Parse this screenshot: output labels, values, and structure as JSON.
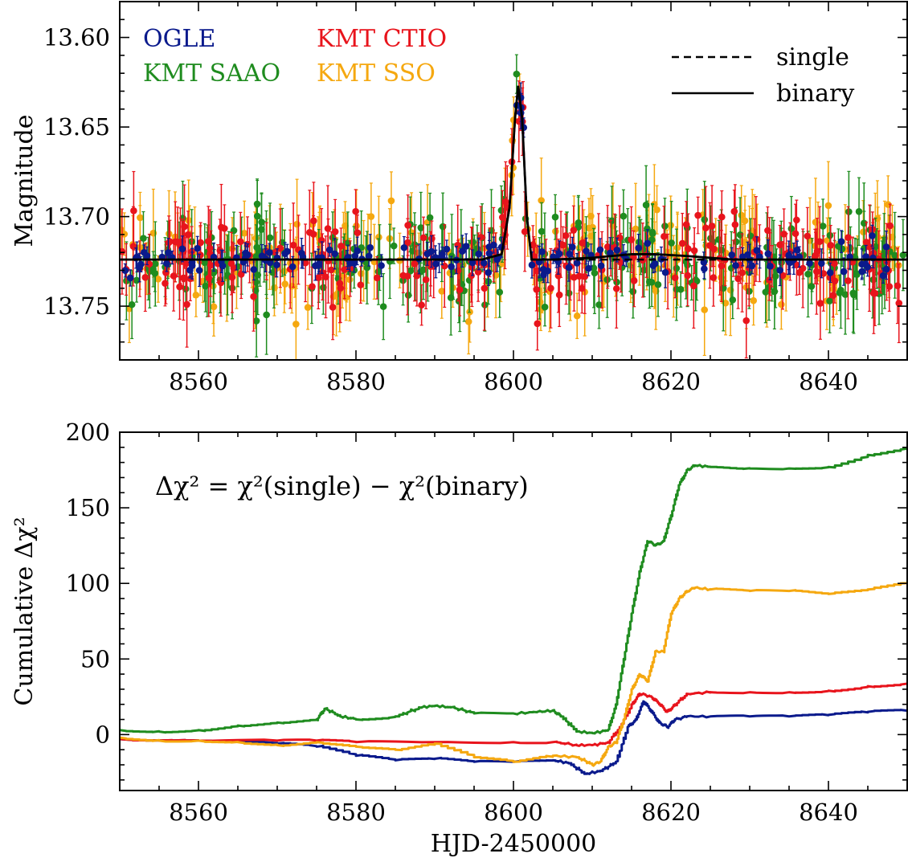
{
  "chart_data": [
    {
      "type": "scatter",
      "panel": "top",
      "ylabel": "Magnitude",
      "xlabel": "",
      "xlim": [
        8550,
        8650
      ],
      "ylim": [
        13.78,
        13.58
      ],
      "y_inverted": true,
      "x_ticks": [
        8560,
        8580,
        8600,
        8620,
        8640
      ],
      "y_ticks": [
        13.6,
        13.65,
        13.7,
        13.75
      ],
      "y_tick_labels": [
        "13.60",
        "13.65",
        "13.70",
        "13.75"
      ],
      "data_legend": [
        {
          "name": "OGLE",
          "color": "#0a1a8c",
          "position": "top-left-row1-col1"
        },
        {
          "name": "KMT CTIO",
          "color": "#e8141c",
          "position": "top-left-row1-col2"
        },
        {
          "name": "KMT SAAO",
          "color": "#1f8c1f",
          "position": "top-left-row2-col1"
        },
        {
          "name": "KMT SSO",
          "color": "#f5a810",
          "position": "top-left-row2-col2"
        }
      ],
      "model_legend": [
        {
          "name": "single",
          "style": "dashed"
        },
        {
          "name": "binary",
          "style": "solid"
        }
      ],
      "baseline_magnitude": 13.724,
      "peak": {
        "x": 8600.6,
        "y": 13.627
      },
      "binary_model": {
        "x": [
          8550,
          8596,
          8598.5,
          8599.5,
          8600.2,
          8600.6,
          8601.1,
          8601.7,
          8602.3,
          8605,
          8610,
          8615,
          8618,
          8622,
          8628,
          8650
        ],
        "y": [
          13.724,
          13.724,
          13.721,
          13.695,
          13.645,
          13.627,
          13.645,
          13.7,
          13.724,
          13.724,
          13.723,
          13.721,
          13.721,
          13.722,
          13.724,
          13.724
        ]
      },
      "single_model": {
        "x": [
          8550,
          8596,
          8598.5,
          8599.5,
          8600.2,
          8600.6,
          8601.1,
          8601.7,
          8602.3,
          8650
        ],
        "y": [
          13.724,
          13.724,
          13.721,
          13.695,
          13.645,
          13.627,
          13.645,
          13.7,
          13.724,
          13.724
        ]
      },
      "noise_amplitude": {
        "OGLE": 0.006,
        "KMT CTIO": 0.016,
        "KMT SAAO": 0.016,
        "KMT SSO": 0.017
      },
      "typical_error_bar": {
        "OGLE": 0.006,
        "KMT CTIO": 0.016,
        "KMT SAAO": 0.016,
        "KMT SSO": 0.017
      }
    },
    {
      "type": "line",
      "panel": "bottom",
      "annotation": "Δχ² = χ²(single) − χ²(binary)",
      "ylabel": "Cumulative Δχ²",
      "xlabel": "HJD-2450000",
      "xlim": [
        8550,
        8650
      ],
      "ylim": [
        -37,
        200
      ],
      "x_ticks": [
        8560,
        8580,
        8600,
        8620,
        8640
      ],
      "y_ticks": [
        0,
        50,
        100,
        150,
        200
      ],
      "series": [
        {
          "name": "OGLE",
          "color": "#0a1a8c",
          "x": [
            8550,
            8560,
            8570,
            8575,
            8580,
            8585,
            8590,
            8595,
            8600,
            8605,
            8607,
            8609,
            8611,
            8613,
            8614.5,
            8615.5,
            8616.5,
            8617.5,
            8618.5,
            8619.5,
            8620.5,
            8622,
            8625,
            8630,
            8635,
            8640,
            8645,
            8650
          ],
          "y": [
            -3,
            -4,
            -6,
            -8,
            -14,
            -17,
            -16,
            -18,
            -18,
            -17,
            -19,
            -26,
            -24,
            -18,
            5,
            10,
            22,
            15,
            8,
            5,
            10,
            12,
            12,
            12,
            12,
            13,
            15,
            16
          ]
        },
        {
          "name": "KMT CTIO",
          "color": "#e8141c",
          "x": [
            8550,
            8560,
            8570,
            8575,
            8580,
            8590,
            8600,
            8605,
            8608,
            8610,
            8612,
            8613.5,
            8615,
            8616,
            8617.5,
            8618.5,
            8619.5,
            8620.5,
            8622,
            8625,
            8630,
            8635,
            8640,
            8645,
            8650
          ],
          "y": [
            -3,
            -4,
            -4,
            -4,
            -5,
            -5,
            -5,
            -5,
            -7,
            -7,
            -5,
            5,
            20,
            27,
            25,
            20,
            15,
            20,
            27,
            28,
            28,
            28,
            29,
            32,
            34
          ]
        },
        {
          "name": "KMT SAAO",
          "color": "#1f8c1f",
          "x": [
            8550,
            8555,
            8560,
            8565,
            8570,
            8575,
            8576,
            8578,
            8580,
            8585,
            8588,
            8590,
            8592,
            8595,
            8600,
            8603,
            8605,
            8606,
            8608,
            8610,
            8612,
            8613,
            8614,
            8615,
            8616,
            8617,
            8618,
            8619,
            8620,
            8621,
            8622,
            8623,
            8625,
            8630,
            8635,
            8640,
            8645,
            8650
          ],
          "y": [
            3,
            2,
            3,
            6,
            8,
            10,
            17,
            12,
            10,
            12,
            18,
            19,
            18,
            14,
            14,
            15,
            16,
            12,
            2,
            1,
            3,
            20,
            50,
            80,
            108,
            128,
            125,
            128,
            145,
            165,
            175,
            178,
            177,
            176,
            176,
            177,
            185,
            190
          ]
        },
        {
          "name": "KMT SSO",
          "color": "#f5a810",
          "x": [
            8550,
            8555,
            8560,
            8565,
            8570,
            8575,
            8580,
            8585,
            8590,
            8595,
            8600,
            8605,
            8608,
            8610,
            8611,
            8612,
            8613,
            8614,
            8615,
            8616,
            8617,
            8618,
            8619,
            8620,
            8621,
            8622,
            8623,
            8625,
            8630,
            8635,
            8640,
            8645,
            8650
          ],
          "y": [
            -2,
            -4,
            -4,
            -5,
            -7,
            -5,
            -8,
            -10,
            -6,
            -15,
            -18,
            -14,
            -15,
            -20,
            -18,
            -8,
            -5,
            10,
            30,
            40,
            35,
            55,
            55,
            80,
            90,
            95,
            97,
            96,
            95,
            95,
            93,
            96,
            101
          ]
        }
      ]
    }
  ]
}
